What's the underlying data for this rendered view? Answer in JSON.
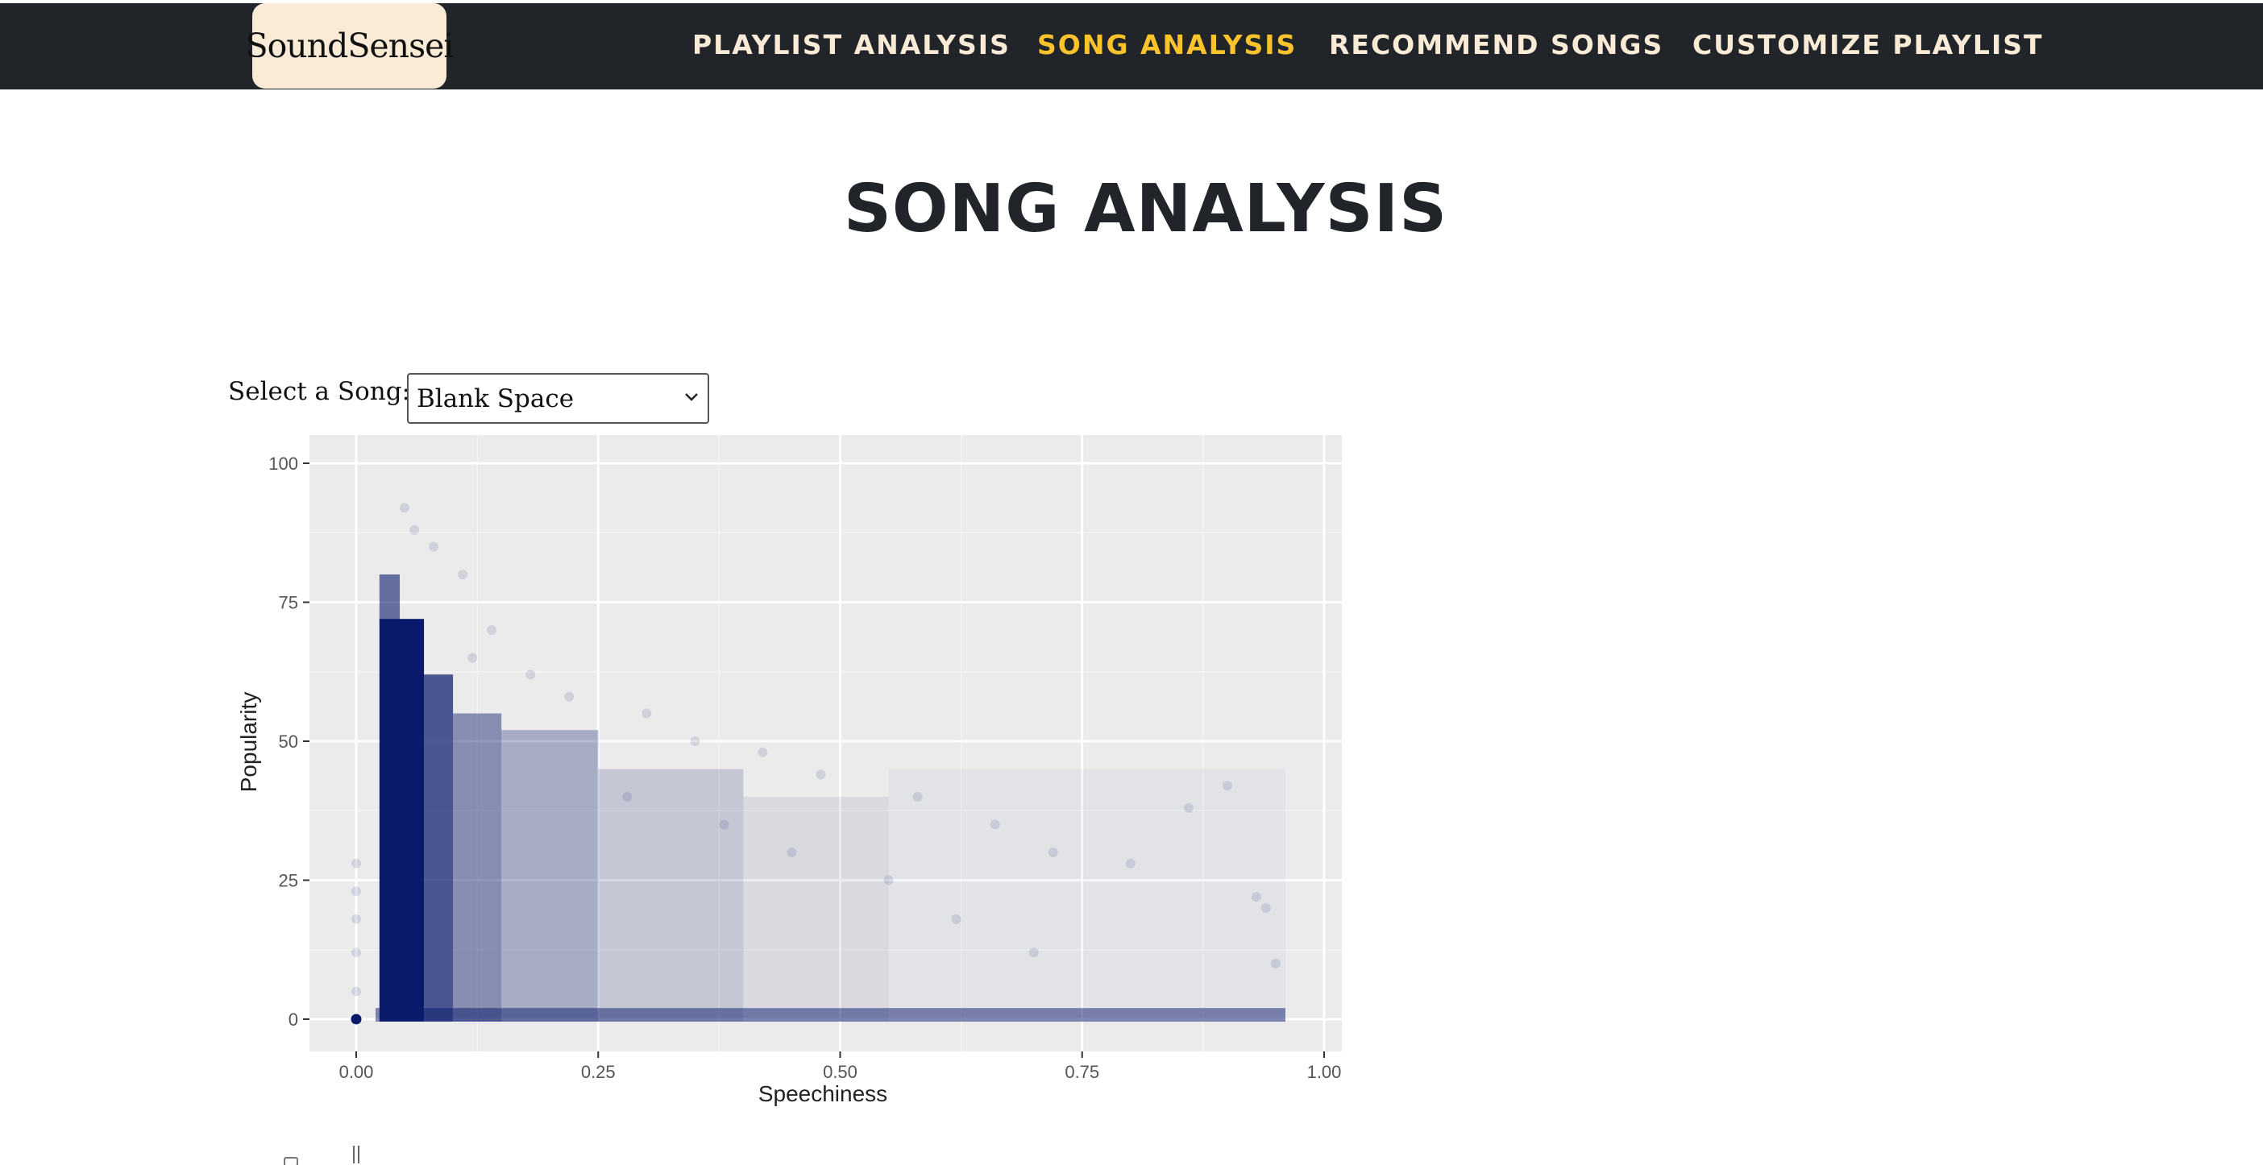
{
  "brand": {
    "name": "SoundSensei"
  },
  "nav": {
    "items": [
      {
        "label": "PLAYLIST ANALYSIS",
        "active": false
      },
      {
        "label": "SONG ANALYSIS",
        "active": true
      },
      {
        "label": "RECOMMEND SONGS",
        "active": false
      },
      {
        "label": "CUSTOMIZE PLAYLIST",
        "active": false
      }
    ]
  },
  "page": {
    "title": "SONG ANALYSIS"
  },
  "song_select": {
    "label": "Select a Song:",
    "value": "Blank Space"
  },
  "colors": {
    "navbar_bg": "#212529",
    "brand_bg": "#faebd7",
    "nav_text": "#faebd7",
    "nav_active": "#fdc32b",
    "points": "#0a1a6b",
    "panel_bg": "#ebebeb"
  },
  "icons": {
    "select_arrow": "chevron-down-icon"
  },
  "chart_data": {
    "type": "scatter",
    "xlabel": "Speechiness",
    "ylabel": "Popularity",
    "xlim": [
      0,
      1
    ],
    "ylim": [
      0,
      100
    ],
    "x_ticks": [
      "0.00",
      "0.25",
      "0.50",
      "0.75",
      "1.00"
    ],
    "x_tick_values": [
      0,
      0.25,
      0.5,
      0.75,
      1.0
    ],
    "y_ticks": [
      "0",
      "25",
      "50",
      "75",
      "100"
    ],
    "y_tick_values": [
      0,
      25,
      50,
      75,
      100
    ],
    "grid": true,
    "density_bands": [
      {
        "x": [
          0.024,
          0.07
        ],
        "y": [
          0,
          72
        ],
        "opacity": 1.0
      },
      {
        "x": [
          0.024,
          0.045
        ],
        "y": [
          72,
          80
        ],
        "opacity": 0.6
      },
      {
        "x": [
          0.07,
          0.1
        ],
        "y": [
          0,
          62
        ],
        "opacity": 0.72
      },
      {
        "x": [
          0.1,
          0.15
        ],
        "y": [
          0,
          55
        ],
        "opacity": 0.45
      },
      {
        "x": [
          0.15,
          0.25
        ],
        "y": [
          0,
          52
        ],
        "opacity": 0.3
      },
      {
        "x": [
          0.25,
          0.4
        ],
        "y": [
          0,
          45
        ],
        "opacity": 0.17
      },
      {
        "x": [
          0.4,
          0.55
        ],
        "y": [
          0,
          40
        ],
        "opacity": 0.08
      },
      {
        "x": [
          0.55,
          0.96
        ],
        "y": [
          0,
          45
        ],
        "opacity": 0.035
      },
      {
        "x": [
          0.02,
          0.96
        ],
        "y": [
          0,
          2
        ],
        "opacity": 0.5
      }
    ],
    "highlight_point": {
      "x": 0.0,
      "y": 0
    },
    "sample_points": [
      {
        "x": 0.0,
        "y": 5
      },
      {
        "x": 0.0,
        "y": 12
      },
      {
        "x": 0.0,
        "y": 23
      },
      {
        "x": 0.0,
        "y": 28
      },
      {
        "x": 0.0,
        "y": 18
      },
      {
        "x": 0.12,
        "y": 65
      },
      {
        "x": 0.14,
        "y": 70
      },
      {
        "x": 0.18,
        "y": 62
      },
      {
        "x": 0.22,
        "y": 58
      },
      {
        "x": 0.3,
        "y": 55
      },
      {
        "x": 0.35,
        "y": 50
      },
      {
        "x": 0.42,
        "y": 48
      },
      {
        "x": 0.48,
        "y": 44
      },
      {
        "x": 0.58,
        "y": 40
      },
      {
        "x": 0.66,
        "y": 35
      },
      {
        "x": 0.72,
        "y": 30
      },
      {
        "x": 0.8,
        "y": 28
      },
      {
        "x": 0.86,
        "y": 38
      },
      {
        "x": 0.9,
        "y": 42
      },
      {
        "x": 0.93,
        "y": 22
      },
      {
        "x": 0.94,
        "y": 20
      },
      {
        "x": 0.95,
        "y": 10
      },
      {
        "x": 0.55,
        "y": 25
      },
      {
        "x": 0.62,
        "y": 18
      },
      {
        "x": 0.7,
        "y": 12
      },
      {
        "x": 0.45,
        "y": 30
      },
      {
        "x": 0.38,
        "y": 35
      },
      {
        "x": 0.28,
        "y": 40
      },
      {
        "x": 0.08,
        "y": 85
      },
      {
        "x": 0.06,
        "y": 88
      },
      {
        "x": 0.05,
        "y": 92
      },
      {
        "x": 0.11,
        "y": 80
      }
    ]
  }
}
